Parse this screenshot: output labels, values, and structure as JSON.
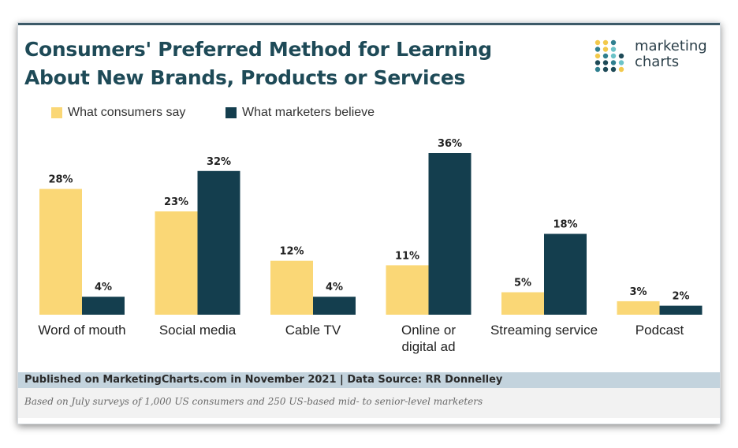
{
  "colors": {
    "consumers": "#fad776",
    "marketers": "#143e4e",
    "title": "#1e4a57",
    "logo_dots": [
      "#f2c94c",
      "#2f7f8f",
      "#6cc3c8",
      "#1e4a57"
    ]
  },
  "logo": {
    "line1": "marketing",
    "line2": "charts"
  },
  "footer": {
    "source": "Published on MarketingCharts.com in November 2021 | Data Source: RR Donnelley",
    "note": "Based on July surveys of 1,000 US consumers and 250 US-based mid- to senior-level marketers"
  },
  "chart_data": {
    "type": "bar",
    "title_lines": [
      "Consumers' Preferred Method for Learning",
      "About New Brands, Products or Services"
    ],
    "categories": [
      [
        "Word of mouth"
      ],
      [
        "Social media"
      ],
      [
        "Cable TV"
      ],
      [
        "Online or",
        "digital ad"
      ],
      [
        "Streaming service"
      ],
      [
        "Podcast"
      ]
    ],
    "series": [
      {
        "name": "What consumers say",
        "values": [
          28,
          23,
          12,
          11,
          5,
          3
        ],
        "labels": [
          "28%",
          "23%",
          "12%",
          "11%",
          "5%",
          "3%"
        ]
      },
      {
        "name": "What marketers believe",
        "values": [
          4,
          32,
          4,
          36,
          18,
          2
        ],
        "labels": [
          "4%",
          "32%",
          "4%",
          "36%",
          "18%",
          "2%"
        ]
      }
    ],
    "ylim": [
      0,
      36
    ],
    "legend_position": "top-left",
    "grid": false
  }
}
